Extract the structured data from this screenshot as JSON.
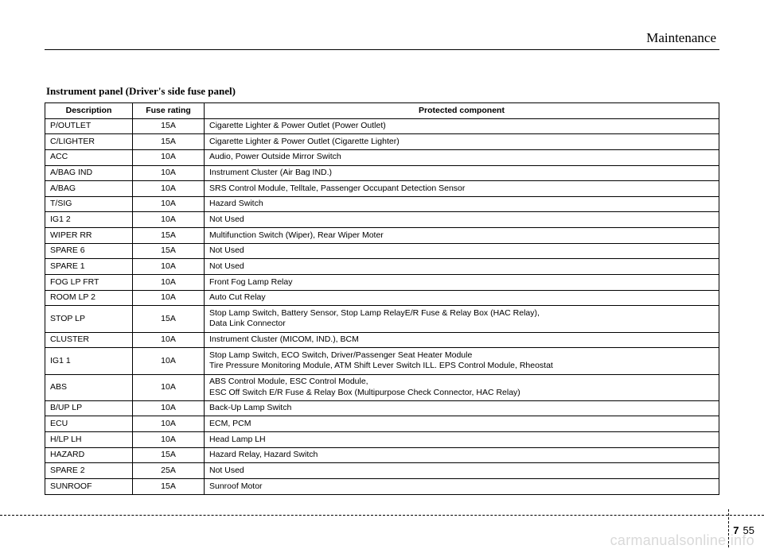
{
  "chapter": "Maintenance",
  "title": "Instrument panel (Driver's side fuse panel)",
  "table": {
    "headers": [
      "Description",
      "Fuse rating",
      "Protected component"
    ],
    "rows": [
      [
        "P/OUTLET",
        "15A",
        "Cigarette Lighter & Power Outlet (Power Outlet)"
      ],
      [
        "C/LIGHTER",
        "15A",
        "Cigarette Lighter & Power Outlet (Cigarette Lighter)"
      ],
      [
        "ACC",
        "10A",
        "Audio, Power Outside Mirror Switch"
      ],
      [
        "A/BAG IND",
        "10A",
        "Instrument Cluster (Air Bag IND.)"
      ],
      [
        "A/BAG",
        "10A",
        "SRS Control Module, Telltale, Passenger Occupant Detection Sensor"
      ],
      [
        "T/SIG",
        "10A",
        "Hazard Switch"
      ],
      [
        "IG1 2",
        "10A",
        "Not Used"
      ],
      [
        "WIPER RR",
        "15A",
        "Multifunction Switch (Wiper), Rear Wiper Moter"
      ],
      [
        "SPARE 6",
        "15A",
        "Not Used"
      ],
      [
        "SPARE 1",
        "10A",
        "Not Used"
      ],
      [
        "FOG LP FRT",
        "10A",
        "Front Fog Lamp Relay"
      ],
      [
        "ROOM LP 2",
        "10A",
        "Auto Cut Relay"
      ],
      [
        "STOP LP",
        "15A",
        "Stop Lamp Switch, Battery Sensor, Stop Lamp RelayE/R Fuse & Relay Box (HAC Relay),\nData Link Connector"
      ],
      [
        "CLUSTER",
        "10A",
        "Instrument Cluster (MICOM, IND.), BCM"
      ],
      [
        "IG1 1",
        "10A",
        "Stop Lamp Switch, ECO Switch, Driver/Passenger Seat Heater Module\nTire Pressure Monitoring Module, ATM Shift Lever Switch ILL. EPS Control Module, Rheostat"
      ],
      [
        "ABS",
        "10A",
        "ABS Control Module, ESC Control Module,\nESC Off Switch E/R Fuse & Relay Box (Multipurpose Check Connector, HAC Relay)"
      ],
      [
        "B/UP LP",
        "10A",
        "Back-Up Lamp Switch"
      ],
      [
        "ECU",
        "10A",
        "ECM, PCM"
      ],
      [
        "H/LP LH",
        "10A",
        "Head Lamp LH"
      ],
      [
        "HAZARD",
        "15A",
        "Hazard Relay, Hazard Switch"
      ],
      [
        "SPARE 2",
        "25A",
        "Not Used"
      ],
      [
        "SUNROOF",
        "15A",
        "Sunroof Motor"
      ]
    ]
  },
  "page": {
    "section": "7",
    "num": "55"
  },
  "watermark": "carmanualsonline.info"
}
